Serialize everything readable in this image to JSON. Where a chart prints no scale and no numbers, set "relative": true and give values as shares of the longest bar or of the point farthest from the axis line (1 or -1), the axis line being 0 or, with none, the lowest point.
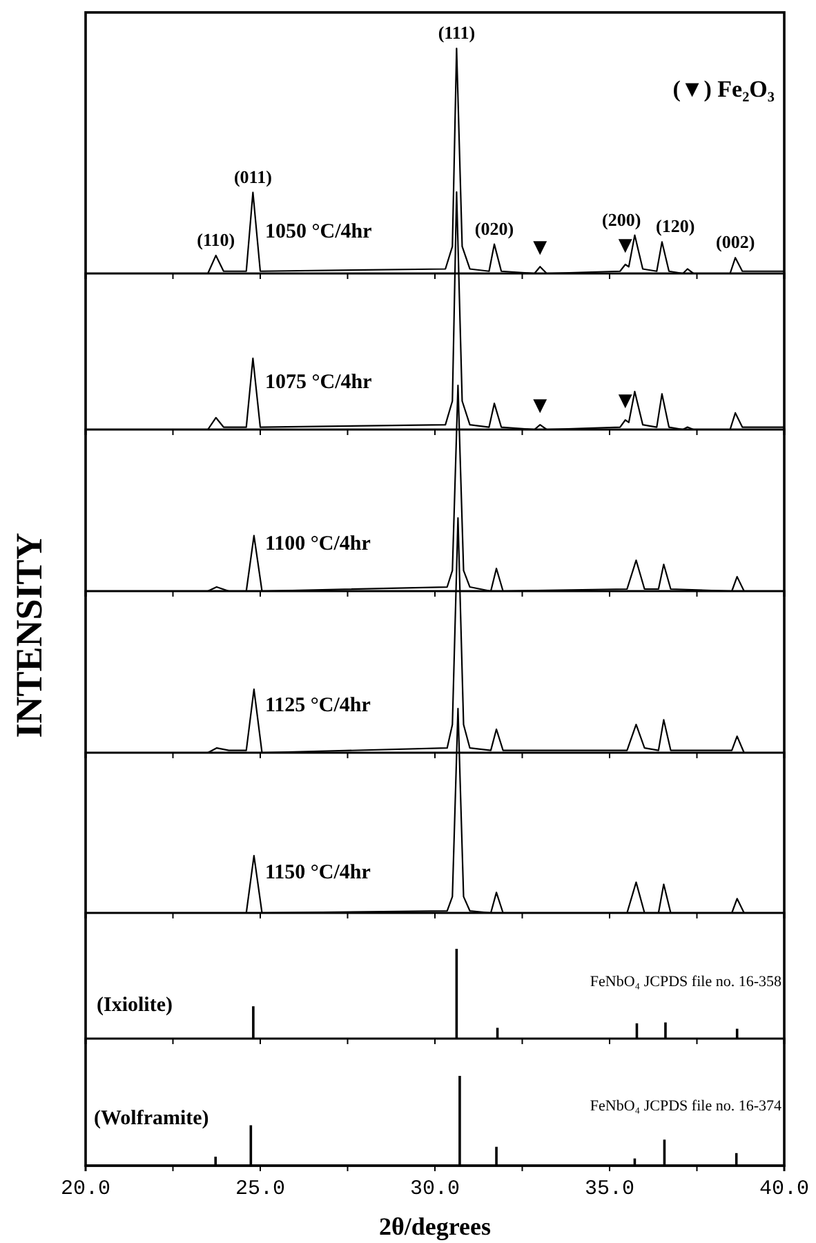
{
  "chart_data": [
    {
      "type": "line",
      "relative": true,
      "color": "#000000",
      "xlim": [
        20,
        40
      ],
      "xticks": [
        {
          "value": 20,
          "label": null
        },
        {
          "value": 22.5,
          "label": null
        },
        {
          "value": 25,
          "label": null
        },
        {
          "value": 27.5,
          "label": null
        },
        {
          "value": 30,
          "label": null
        },
        {
          "value": 32.5,
          "label": null
        },
        {
          "value": 35,
          "label": null
        },
        {
          "value": 37.5,
          "label": null
        },
        {
          "value": 40,
          "label": null
        }
      ],
      "tick_labels": false,
      "x": [
        20,
        23.5,
        23.73,
        23.95,
        24.6,
        24.79,
        25.0,
        30.3,
        30.5,
        30.62,
        30.78,
        31.0,
        31.55,
        31.7,
        31.9,
        32.85,
        33.01,
        33.2,
        35.3,
        35.45,
        35.55,
        35.72,
        35.95,
        36.35,
        36.5,
        36.7,
        37.1,
        37.23,
        37.4,
        38.45,
        38.6,
        38.8,
        40
      ],
      "values": [
        0,
        0,
        0.08,
        0.01,
        0.01,
        0.36,
        0.01,
        0.02,
        0.12,
        1,
        0.12,
        0.02,
        0.01,
        0.13,
        0.01,
        0,
        0.03,
        0,
        0.01,
        0.04,
        0.03,
        0.17,
        0.02,
        0.01,
        0.14,
        0.01,
        0,
        0.02,
        0,
        0,
        0.07,
        0.01,
        0.01
      ],
      "annotations": [
        "1050 °C/4hr",
        "(▼) Fe₂O₃",
        {
          "text": "(110)",
          "x": 23.73,
          "y": 0.08
        },
        {
          "text": "(011)",
          "x": 24.79,
          "y": 0.36
        },
        {
          "text": "(111)",
          "x": 30.62,
          "y": 1
        },
        {
          "text": "(020)",
          "x": 31.7,
          "y": 0.13
        },
        {
          "text": "▼",
          "x": 33.01,
          "y": 0.03
        },
        {
          "text": "▼",
          "x": 35.45,
          "y": 0.04
        },
        {
          "text": "(200)",
          "x": 35.72,
          "y": 0.17
        },
        {
          "text": "(120)",
          "x": 36.5,
          "y": 0.14
        },
        {
          "text": "(002)",
          "x": 38.6,
          "y": 0.07
        }
      ]
    },
    {
      "type": "line",
      "relative": true,
      "color": "#000000",
      "xlim": [
        20,
        40
      ],
      "xticks": [
        {
          "value": 20,
          "label": null
        },
        {
          "value": 22.5,
          "label": null
        },
        {
          "value": 25,
          "label": null
        },
        {
          "value": 27.5,
          "label": null
        },
        {
          "value": 30,
          "label": null
        },
        {
          "value": 32.5,
          "label": null
        },
        {
          "value": 35,
          "label": null
        },
        {
          "value": 37.5,
          "label": null
        },
        {
          "value": 40,
          "label": null
        }
      ],
      "tick_labels": false,
      "x": [
        20,
        23.5,
        23.73,
        23.95,
        24.6,
        24.79,
        25.0,
        30.3,
        30.5,
        30.62,
        30.78,
        31.0,
        31.55,
        31.7,
        31.9,
        32.85,
        33.01,
        33.2,
        35.3,
        35.45,
        35.55,
        35.72,
        35.95,
        36.35,
        36.5,
        36.7,
        37.1,
        37.23,
        37.4,
        38.45,
        38.6,
        38.8,
        40
      ],
      "values": [
        0,
        0,
        0.05,
        0.01,
        0.01,
        0.3,
        0.01,
        0.02,
        0.12,
        1,
        0.12,
        0.02,
        0.01,
        0.11,
        0.01,
        0,
        0.02,
        0,
        0.01,
        0.04,
        0.03,
        0.16,
        0.02,
        0.01,
        0.15,
        0.01,
        0,
        0.01,
        0,
        0,
        0.07,
        0.01,
        0.01
      ],
      "annotations": [
        "1075 °C/4hr",
        {
          "text": "▼",
          "x": 33.01,
          "y": 0.02
        },
        {
          "text": "▼",
          "x": 35.45,
          "y": 0.04
        }
      ]
    },
    {
      "type": "line",
      "relative": true,
      "color": "#000000",
      "xlim": [
        20,
        40
      ],
      "xticks": [
        {
          "value": 20,
          "label": null
        },
        {
          "value": 22.5,
          "label": null
        },
        {
          "value": 25,
          "label": null
        },
        {
          "value": 27.5,
          "label": null
        },
        {
          "value": 30,
          "label": null
        },
        {
          "value": 32.5,
          "label": null
        },
        {
          "value": 35,
          "label": null
        },
        {
          "value": 37.5,
          "label": null
        },
        {
          "value": 40,
          "label": null
        }
      ],
      "tick_labels": false,
      "x": [
        20,
        23.5,
        23.75,
        24.1,
        24.6,
        24.82,
        25.05,
        30.35,
        30.5,
        30.66,
        30.82,
        31.0,
        31.6,
        31.76,
        31.95,
        35.5,
        35.76,
        36.0,
        36.4,
        36.55,
        36.75,
        38.5,
        38.65,
        38.85,
        40
      ],
      "values": [
        0,
        0,
        0.02,
        0,
        0,
        0.27,
        0,
        0.02,
        0.1,
        1,
        0.1,
        0.02,
        0,
        0.11,
        0,
        0.01,
        0.15,
        0.01,
        0.01,
        0.13,
        0.01,
        0,
        0.07,
        0,
        0
      ],
      "annotations": [
        "1100 °C/4hr"
      ]
    },
    {
      "type": "line",
      "relative": true,
      "color": "#000000",
      "ylabel": "INTENSITY",
      "xlim": [
        20,
        40
      ],
      "xticks": [
        {
          "value": 20,
          "label": null
        },
        {
          "value": 22.5,
          "label": null
        },
        {
          "value": 25,
          "label": null
        },
        {
          "value": 27.5,
          "label": null
        },
        {
          "value": 30,
          "label": null
        },
        {
          "value": 32.5,
          "label": null
        },
        {
          "value": 35,
          "label": null
        },
        {
          "value": 37.5,
          "label": null
        },
        {
          "value": 40,
          "label": null
        }
      ],
      "tick_labels": false,
      "x": [
        20,
        23.5,
        23.75,
        24.1,
        24.6,
        24.82,
        25.05,
        30.35,
        30.5,
        30.66,
        30.82,
        31.0,
        31.6,
        31.76,
        31.95,
        35.5,
        35.76,
        36.0,
        36.4,
        36.55,
        36.75,
        38.5,
        38.65,
        38.85,
        40
      ],
      "values": [
        0,
        0,
        0.02,
        0.01,
        0.01,
        0.27,
        0,
        0.02,
        0.12,
        1,
        0.12,
        0.02,
        0.01,
        0.1,
        0.01,
        0.01,
        0.12,
        0.02,
        0.01,
        0.14,
        0.01,
        0.01,
        0.07,
        0,
        0
      ],
      "annotations": [
        "1125 °C/4hr"
      ]
    },
    {
      "type": "line",
      "relative": true,
      "color": "#000000",
      "xlim": [
        20,
        40
      ],
      "xticks": [
        {
          "value": 20,
          "label": null
        },
        {
          "value": 22.5,
          "label": null
        },
        {
          "value": 25,
          "label": null
        },
        {
          "value": 27.5,
          "label": null
        },
        {
          "value": 30,
          "label": null
        },
        {
          "value": 32.5,
          "label": null
        },
        {
          "value": 35,
          "label": null
        },
        {
          "value": 37.5,
          "label": null
        },
        {
          "value": 40,
          "label": null
        }
      ],
      "tick_labels": false,
      "x": [
        20,
        23.5,
        23.75,
        24.1,
        24.6,
        24.82,
        25.05,
        30.35,
        30.5,
        30.66,
        30.82,
        31.0,
        31.6,
        31.76,
        31.95,
        35.5,
        35.76,
        36.0,
        36.4,
        36.55,
        36.75,
        38.5,
        38.65,
        38.85,
        40
      ],
      "values": [
        0,
        0,
        0,
        0,
        0,
        0.28,
        0,
        0.01,
        0.08,
        1,
        0.08,
        0.01,
        0,
        0.1,
        0,
        0,
        0.15,
        0,
        0,
        0.14,
        0,
        0,
        0.07,
        0,
        0
      ],
      "annotations": [
        "1150 °C/4hr"
      ]
    },
    {
      "type": "bar",
      "relative": true,
      "color": "#000000",
      "xlim": [
        20,
        40
      ],
      "xticks": [
        {
          "value": 20,
          "label": null
        },
        {
          "value": 22.5,
          "label": null
        },
        {
          "value": 25,
          "label": null
        },
        {
          "value": 27.5,
          "label": null
        },
        {
          "value": 30,
          "label": null
        },
        {
          "value": 32.5,
          "label": null
        },
        {
          "value": 35,
          "label": null
        },
        {
          "value": 37.5,
          "label": null
        },
        {
          "value": 40,
          "label": null
        }
      ],
      "tick_labels": false,
      "x": [
        24.8,
        30.62,
        31.79,
        35.78,
        36.6,
        38.65
      ],
      "values": [
        0.36,
        1,
        0.12,
        0.17,
        0.18,
        0.11
      ],
      "annotations": [
        "(Ixiolite)",
        "FeNbO₄ JCPDS file no. 16-358"
      ]
    },
    {
      "type": "bar",
      "relative": true,
      "color": "#000000",
      "xlabel": "2θ/degrees",
      "xlim": [
        20,
        40
      ],
      "xticks": [
        {
          "value": 20,
          "label": "20.0"
        },
        {
          "value": 22.5,
          "label": null
        },
        {
          "value": 25,
          "label": "25.0"
        },
        {
          "value": 27.5,
          "label": null
        },
        {
          "value": 30,
          "label": "30.0"
        },
        {
          "value": 32.5,
          "label": null
        },
        {
          "value": 35,
          "label": "35.0"
        },
        {
          "value": 37.5,
          "label": null
        },
        {
          "value": 40,
          "label": "40.0"
        }
      ],
      "tick_labels": "x",
      "x": [
        23.72,
        24.73,
        30.71,
        31.76,
        35.72,
        36.57,
        38.63
      ],
      "values": [
        0.1,
        0.45,
        1,
        0.21,
        0.08,
        0.29,
        0.14
      ],
      "annotations": [
        "(Wolframite)",
        "FeNbO₄ JCPDS file no. 16-374"
      ]
    }
  ]
}
